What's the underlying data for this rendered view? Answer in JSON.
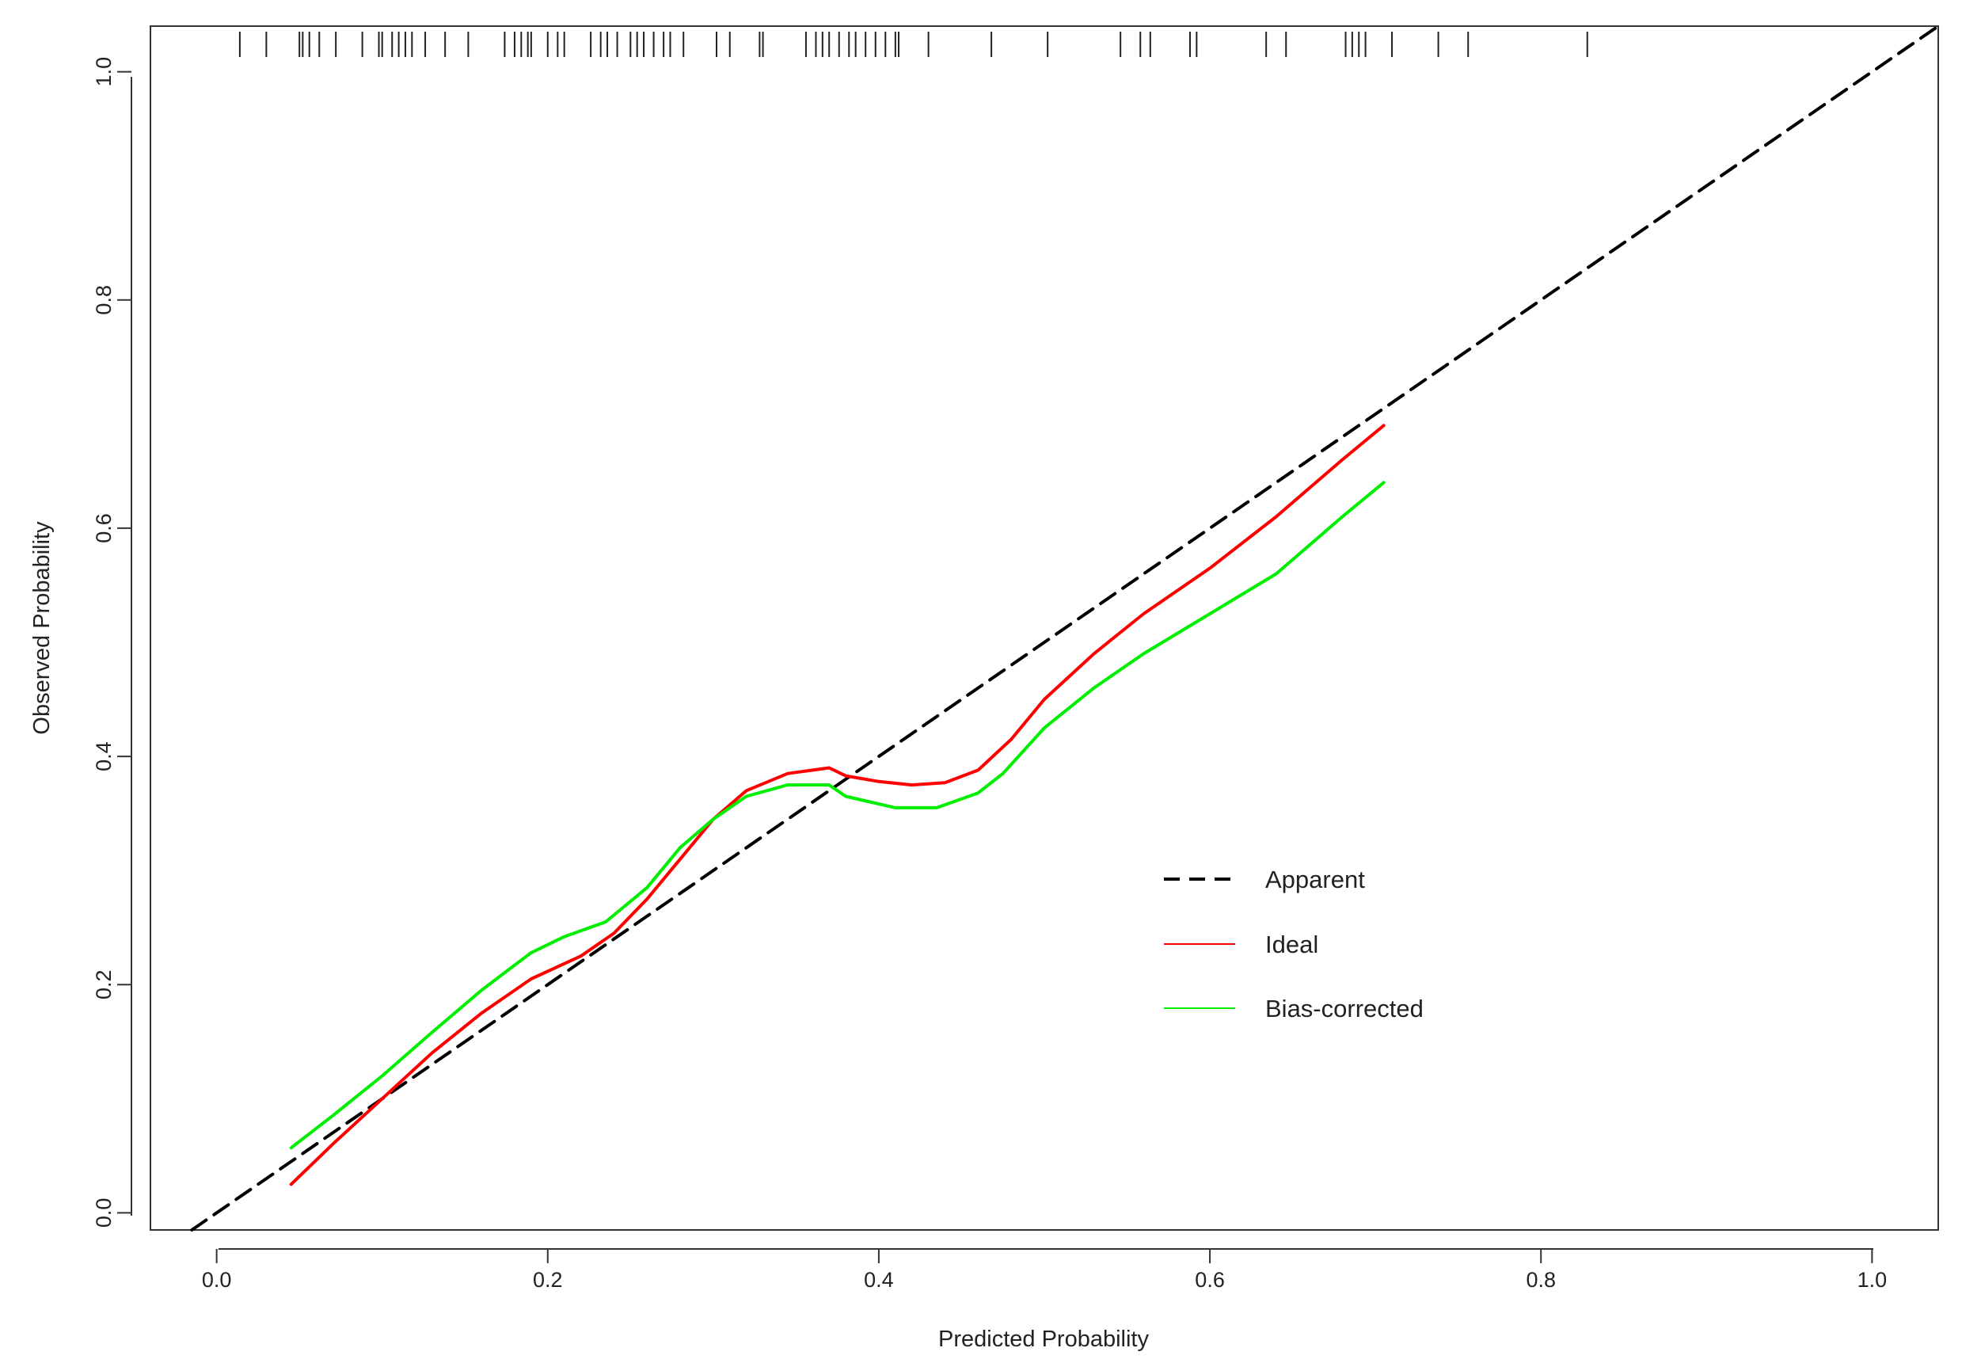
{
  "chart_data": {
    "type": "line",
    "title": "",
    "xlabel": "Predicted Probability",
    "ylabel": "Observed Probability",
    "xlim": [
      -0.04,
      1.04
    ],
    "ylim": [
      -0.015,
      1.04
    ],
    "x_ticks": [
      "0.0",
      "0.2",
      "0.4",
      "0.6",
      "0.8",
      "1.0"
    ],
    "y_ticks": [
      "0.0",
      "0.2",
      "0.4",
      "0.6",
      "0.8",
      "1.0"
    ],
    "grid": false,
    "legend_position": "bottom-right",
    "series": [
      {
        "name": "Apparent",
        "color": "#000000",
        "style": "dashed",
        "x": [
          -0.015,
          1.04
        ],
        "y": [
          -0.015,
          1.04
        ]
      },
      {
        "name": "Ideal",
        "color": "#ff0000",
        "style": "solid",
        "x": [
          0.045,
          0.07,
          0.1,
          0.13,
          0.16,
          0.19,
          0.22,
          0.24,
          0.26,
          0.28,
          0.3,
          0.32,
          0.345,
          0.37,
          0.38,
          0.4,
          0.42,
          0.44,
          0.46,
          0.48,
          0.5,
          0.53,
          0.56,
          0.6,
          0.64,
          0.68,
          0.705
        ],
        "y": [
          0.025,
          0.06,
          0.1,
          0.14,
          0.175,
          0.205,
          0.225,
          0.245,
          0.275,
          0.31,
          0.345,
          0.37,
          0.385,
          0.39,
          0.383,
          0.378,
          0.375,
          0.377,
          0.388,
          0.415,
          0.45,
          0.49,
          0.525,
          0.565,
          0.61,
          0.66,
          0.69
        ]
      },
      {
        "name": "Bias-corrected",
        "color": "#00ee00",
        "style": "solid",
        "x": [
          0.045,
          0.07,
          0.1,
          0.13,
          0.16,
          0.19,
          0.21,
          0.235,
          0.26,
          0.28,
          0.3,
          0.32,
          0.345,
          0.37,
          0.38,
          0.41,
          0.435,
          0.46,
          0.475,
          0.5,
          0.53,
          0.56,
          0.6,
          0.64,
          0.68,
          0.705
        ],
        "y": [
          0.057,
          0.085,
          0.12,
          0.158,
          0.195,
          0.228,
          0.242,
          0.255,
          0.285,
          0.32,
          0.345,
          0.365,
          0.375,
          0.375,
          0.365,
          0.355,
          0.355,
          0.368,
          0.385,
          0.425,
          0.46,
          0.49,
          0.525,
          0.56,
          0.61,
          0.64
        ]
      }
    ],
    "rug_x": [
      0.014,
      0.03,
      0.05,
      0.052,
      0.056,
      0.062,
      0.072,
      0.088,
      0.098,
      0.1,
      0.106,
      0.11,
      0.114,
      0.118,
      0.126,
      0.138,
      0.152,
      0.174,
      0.18,
      0.184,
      0.188,
      0.19,
      0.2,
      0.206,
      0.21,
      0.226,
      0.232,
      0.236,
      0.242,
      0.25,
      0.254,
      0.258,
      0.264,
      0.27,
      0.274,
      0.282,
      0.302,
      0.31,
      0.328,
      0.33,
      0.356,
      0.362,
      0.366,
      0.37,
      0.376,
      0.382,
      0.386,
      0.392,
      0.398,
      0.404,
      0.41,
      0.412,
      0.43,
      0.468,
      0.502,
      0.546,
      0.558,
      0.564,
      0.588,
      0.592,
      0.634,
      0.646,
      0.682,
      0.686,
      0.69,
      0.694,
      0.71,
      0.738,
      0.756,
      0.828
    ]
  }
}
